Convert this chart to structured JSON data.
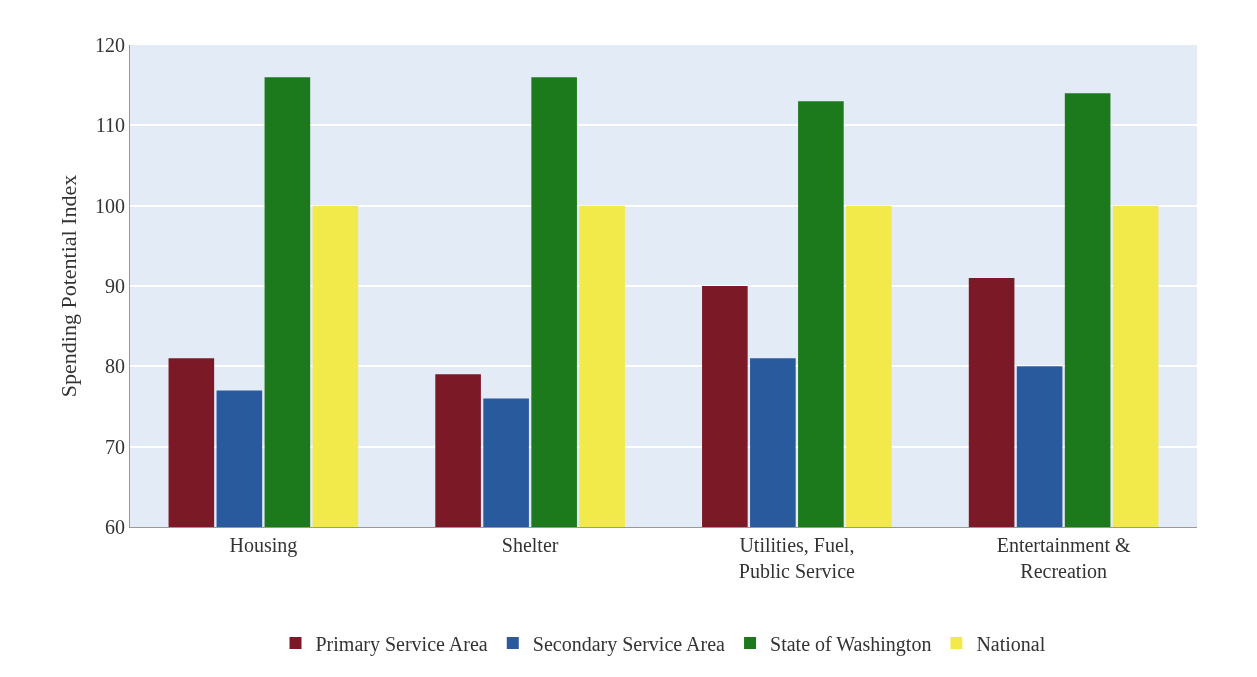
{
  "chart_data": {
    "type": "bar",
    "ylabel": "Spending Potential Index",
    "categories": [
      "Housing",
      "Shelter",
      "Utilities, Fuel, Public Service",
      "Entertainment & Recreation"
    ],
    "series": [
      {
        "name": "Primary Service Area",
        "color": "#7b1a26",
        "values": [
          81,
          79,
          90,
          91
        ]
      },
      {
        "name": "Secondary Service Area",
        "color": "#2a5a9e",
        "values": [
          77,
          76,
          81,
          80
        ]
      },
      {
        "name": "State of Washington",
        "color": "#1c7a1c",
        "values": [
          116,
          116,
          113,
          114
        ]
      },
      {
        "name": "National",
        "color": "#f2ea4a",
        "values": [
          100,
          100,
          100,
          100
        ]
      }
    ],
    "ylim": [
      60,
      120
    ],
    "yticks": [
      60,
      70,
      80,
      90,
      100,
      110,
      120
    ],
    "grid": "y",
    "legend": "bottom"
  }
}
